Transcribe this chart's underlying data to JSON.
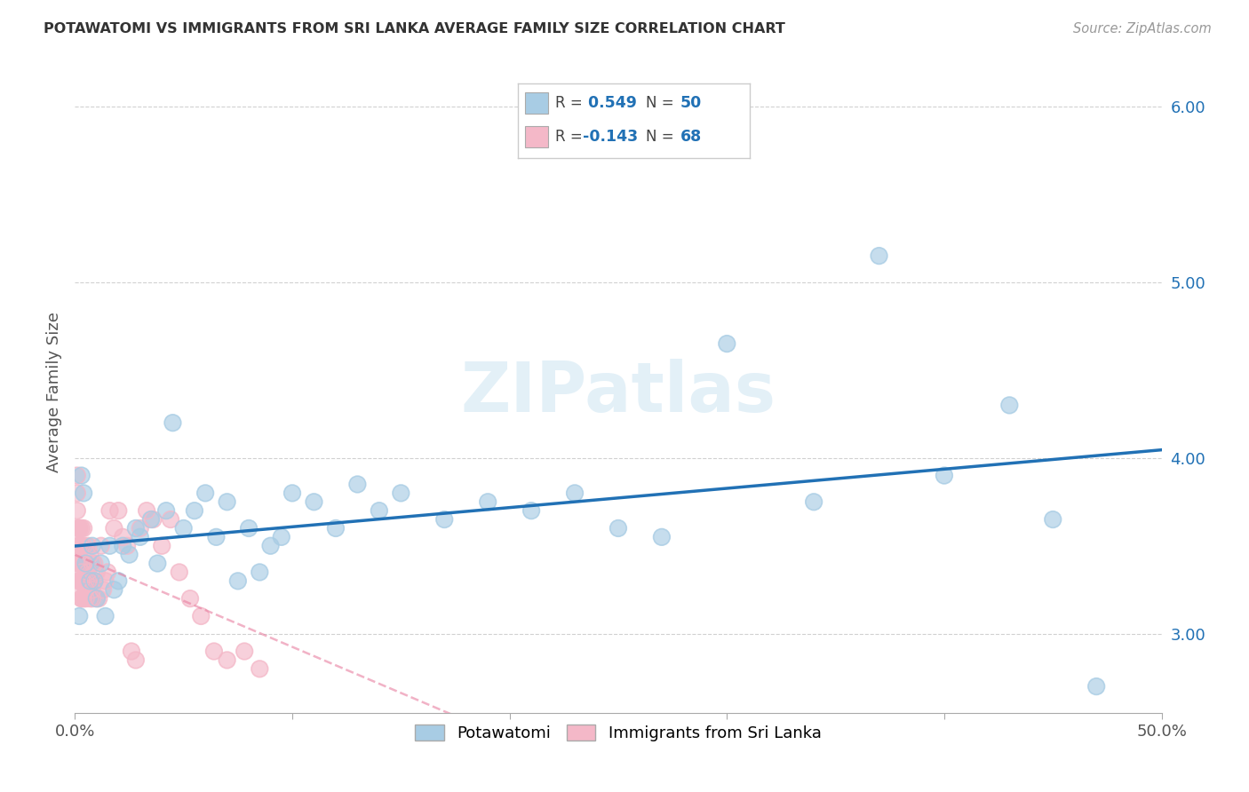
{
  "title": "POTAWATOMI VS IMMIGRANTS FROM SRI LANKA AVERAGE FAMILY SIZE CORRELATION CHART",
  "source": "Source: ZipAtlas.com",
  "ylabel": "Average Family Size",
  "xlim": [
    0.0,
    0.5
  ],
  "ylim": [
    2.55,
    6.2
  ],
  "yticks": [
    3.0,
    4.0,
    5.0,
    6.0
  ],
  "xticks": [
    0.0,
    0.1,
    0.2,
    0.3,
    0.4,
    0.5
  ],
  "xticklabels": [
    "0.0%",
    "",
    "",
    "",
    "",
    "50.0%"
  ],
  "yticklabels": [
    "3.00",
    "4.00",
    "5.00",
    "6.00"
  ],
  "legend1_label": "Potawatomi",
  "legend2_label": "Immigrants from Sri Lanka",
  "R1": 0.549,
  "N1": 50,
  "R2": -0.143,
  "N2": 68,
  "color_blue": "#a8cce4",
  "color_pink": "#f4b8c8",
  "color_blue_line": "#2171b5",
  "color_pink_line": "#e87fa0",
  "watermark": "ZIPatlas",
  "blue_points_x": [
    0.002,
    0.003,
    0.004,
    0.005,
    0.007,
    0.008,
    0.009,
    0.01,
    0.012,
    0.014,
    0.016,
    0.018,
    0.02,
    0.022,
    0.025,
    0.028,
    0.03,
    0.035,
    0.038,
    0.042,
    0.045,
    0.05,
    0.055,
    0.06,
    0.065,
    0.07,
    0.075,
    0.08,
    0.085,
    0.09,
    0.095,
    0.1,
    0.11,
    0.12,
    0.13,
    0.14,
    0.15,
    0.17,
    0.19,
    0.21,
    0.23,
    0.25,
    0.27,
    0.3,
    0.34,
    0.37,
    0.4,
    0.43,
    0.45,
    0.47
  ],
  "blue_points_y": [
    3.1,
    3.9,
    3.8,
    3.4,
    3.3,
    3.5,
    3.3,
    3.2,
    3.4,
    3.1,
    3.5,
    3.25,
    3.3,
    3.5,
    3.45,
    3.6,
    3.55,
    3.65,
    3.4,
    3.7,
    4.2,
    3.6,
    3.7,
    3.8,
    3.55,
    3.75,
    3.3,
    3.6,
    3.35,
    3.5,
    3.55,
    3.8,
    3.75,
    3.6,
    3.85,
    3.7,
    3.8,
    3.65,
    3.75,
    3.7,
    3.8,
    3.6,
    3.55,
    4.65,
    3.75,
    5.15,
    3.9,
    4.3,
    3.65,
    2.7
  ],
  "pink_points_x": [
    0.001,
    0.001,
    0.001,
    0.001,
    0.001,
    0.001,
    0.002,
    0.002,
    0.002,
    0.002,
    0.002,
    0.002,
    0.003,
    0.003,
    0.003,
    0.003,
    0.003,
    0.003,
    0.003,
    0.003,
    0.003,
    0.003,
    0.004,
    0.004,
    0.004,
    0.004,
    0.004,
    0.005,
    0.005,
    0.005,
    0.005,
    0.006,
    0.006,
    0.006,
    0.007,
    0.007,
    0.007,
    0.008,
    0.008,
    0.008,
    0.009,
    0.009,
    0.01,
    0.01,
    0.011,
    0.012,
    0.013,
    0.014,
    0.015,
    0.016,
    0.018,
    0.02,
    0.022,
    0.024,
    0.026,
    0.028,
    0.03,
    0.033,
    0.036,
    0.04,
    0.044,
    0.048,
    0.053,
    0.058,
    0.064,
    0.07,
    0.078,
    0.085
  ],
  "pink_points_y": [
    3.8,
    3.9,
    3.6,
    3.7,
    3.5,
    3.4,
    3.6,
    3.3,
    3.5,
    3.3,
    3.4,
    3.6,
    3.2,
    3.3,
    3.4,
    3.6,
    3.25,
    3.5,
    3.35,
    3.4,
    3.2,
    3.3,
    3.2,
    3.3,
    3.4,
    3.6,
    3.5,
    3.2,
    3.3,
    3.25,
    3.4,
    3.3,
    3.35,
    3.5,
    3.45,
    3.2,
    3.3,
    3.25,
    3.2,
    3.4,
    3.3,
    3.4,
    3.2,
    3.35,
    3.2,
    3.5,
    3.25,
    3.3,
    3.35,
    3.7,
    3.6,
    3.7,
    3.55,
    3.5,
    2.9,
    2.85,
    3.6,
    3.7,
    3.65,
    3.5,
    3.65,
    3.35,
    3.2,
    3.1,
    2.9,
    2.85,
    2.9,
    2.8
  ]
}
